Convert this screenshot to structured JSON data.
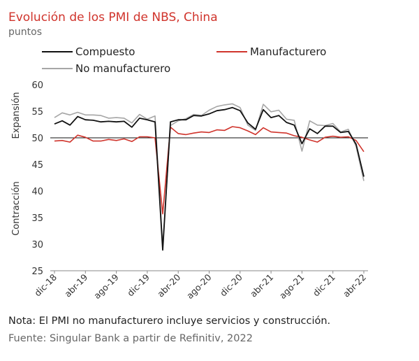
{
  "header": {
    "title": "Evolución de los PMI de NBS, China",
    "subtitle": "puntos"
  },
  "footer": {
    "note": "Nota: El PMI no manufacturero incluye servicios y construcción.",
    "source": "Fuente: Singular Bank a partir de Refinitiv, 2022"
  },
  "colors": {
    "compuesto": "#111111",
    "manufacturero": "#d0342c",
    "no_manufacturero": "#a6a6a6"
  },
  "chart_data": {
    "type": "line",
    "title": "Evolución de los PMI de NBS, China",
    "subtitle": "puntos",
    "ylim": [
      25,
      60
    ],
    "yticks": [
      25,
      30,
      35,
      40,
      45,
      50,
      55,
      60
    ],
    "reference_line": 50,
    "y_annotations": {
      "upper": "Expansión",
      "lower": "Contracción"
    },
    "xtick_labels": [
      "dic-18",
      "abr-19",
      "ago-19",
      "dic-19",
      "abr-20",
      "ago-20",
      "dic-20",
      "abr-21",
      "ago-21",
      "dic-21",
      "abr-22"
    ],
    "x": [
      "dic-18",
      "ene-19",
      "feb-19",
      "mar-19",
      "abr-19",
      "may-19",
      "jun-19",
      "jul-19",
      "ago-19",
      "sep-19",
      "oct-19",
      "nov-19",
      "dic-19",
      "ene-20",
      "feb-20",
      "mar-20",
      "abr-20",
      "may-20",
      "jun-20",
      "jul-20",
      "ago-20",
      "sep-20",
      "oct-20",
      "nov-20",
      "dic-20",
      "ene-21",
      "feb-21",
      "mar-21",
      "abr-21",
      "may-21",
      "jun-21",
      "jul-21",
      "ago-21",
      "sep-21",
      "oct-21",
      "nov-21",
      "dic-21",
      "ene-22",
      "feb-22",
      "mar-22",
      "abr-22"
    ],
    "series": [
      {
        "name": "Compuesto",
        "key": "compuesto",
        "values": [
          52.6,
          53.2,
          52.4,
          54.0,
          53.4,
          53.3,
          53.0,
          53.1,
          53.0,
          53.1,
          52.0,
          53.7,
          53.4,
          53.0,
          28.9,
          53.0,
          53.4,
          53.4,
          54.2,
          54.1,
          54.5,
          55.1,
          55.3,
          55.7,
          55.1,
          52.8,
          51.6,
          55.3,
          53.8,
          54.2,
          52.9,
          52.4,
          48.9,
          51.7,
          50.8,
          52.2,
          52.2,
          51.0,
          51.2,
          48.8,
          42.7
        ]
      },
      {
        "name": "Manufacturero",
        "key": "manufacturero",
        "values": [
          49.4,
          49.5,
          49.2,
          50.5,
          50.1,
          49.4,
          49.4,
          49.7,
          49.5,
          49.8,
          49.3,
          50.2,
          50.2,
          50.0,
          35.7,
          52.0,
          50.8,
          50.6,
          50.9,
          51.1,
          51.0,
          51.5,
          51.4,
          52.1,
          51.9,
          51.3,
          50.6,
          51.9,
          51.1,
          51.0,
          50.9,
          50.4,
          50.1,
          49.6,
          49.2,
          50.1,
          50.3,
          50.1,
          50.2,
          49.5,
          47.4
        ]
      },
      {
        "name": "No manufacturero",
        "key": "no_manufacturero",
        "values": [
          53.8,
          54.7,
          54.3,
          54.8,
          54.3,
          54.3,
          54.2,
          53.7,
          53.8,
          53.7,
          52.8,
          54.4,
          53.5,
          54.1,
          29.6,
          52.3,
          53.2,
          53.6,
          54.4,
          54.2,
          55.2,
          55.9,
          56.2,
          56.4,
          55.7,
          52.4,
          51.4,
          56.3,
          54.9,
          55.2,
          53.5,
          53.3,
          47.5,
          53.2,
          52.4,
          52.3,
          52.7,
          51.1,
          51.6,
          48.4,
          41.9
        ]
      }
    ],
    "legend_position": "top",
    "grid": false
  }
}
